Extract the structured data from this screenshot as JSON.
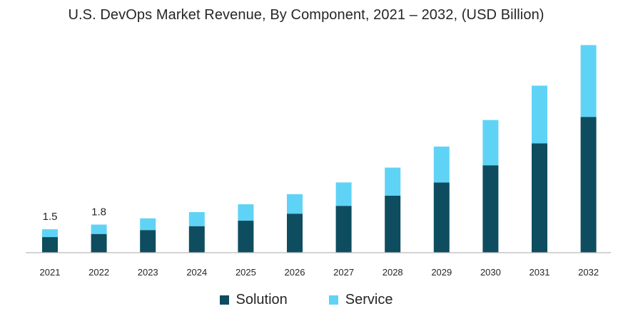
{
  "chart_data": {
    "type": "bar",
    "stacked": true,
    "title": "U.S. DevOps Market Revenue, By Component, 2021 – 2032, (USD Billion)",
    "xlabel": "",
    "ylabel": "",
    "ylim": [
      0,
      14
    ],
    "grid": false,
    "legend_position": "bottom-center",
    "categories": [
      "2021",
      "2022",
      "2023",
      "2024",
      "2025",
      "2026",
      "2027",
      "2028",
      "2029",
      "2030",
      "2031",
      "2032"
    ],
    "series": [
      {
        "name": "Solution",
        "color": "#0d4d5f",
        "values": [
          1.0,
          1.2,
          1.45,
          1.7,
          2.05,
          2.5,
          3.0,
          3.65,
          4.5,
          5.6,
          7.0,
          8.7
        ]
      },
      {
        "name": "Service",
        "color": "#5fd3f6",
        "values": [
          0.5,
          0.6,
          0.75,
          0.9,
          1.05,
          1.25,
          1.5,
          1.8,
          2.3,
          2.9,
          3.7,
          4.6
        ]
      }
    ],
    "data_labels": [
      {
        "category": "2021",
        "text": "1.5"
      },
      {
        "category": "2022",
        "text": "1.8"
      }
    ]
  }
}
